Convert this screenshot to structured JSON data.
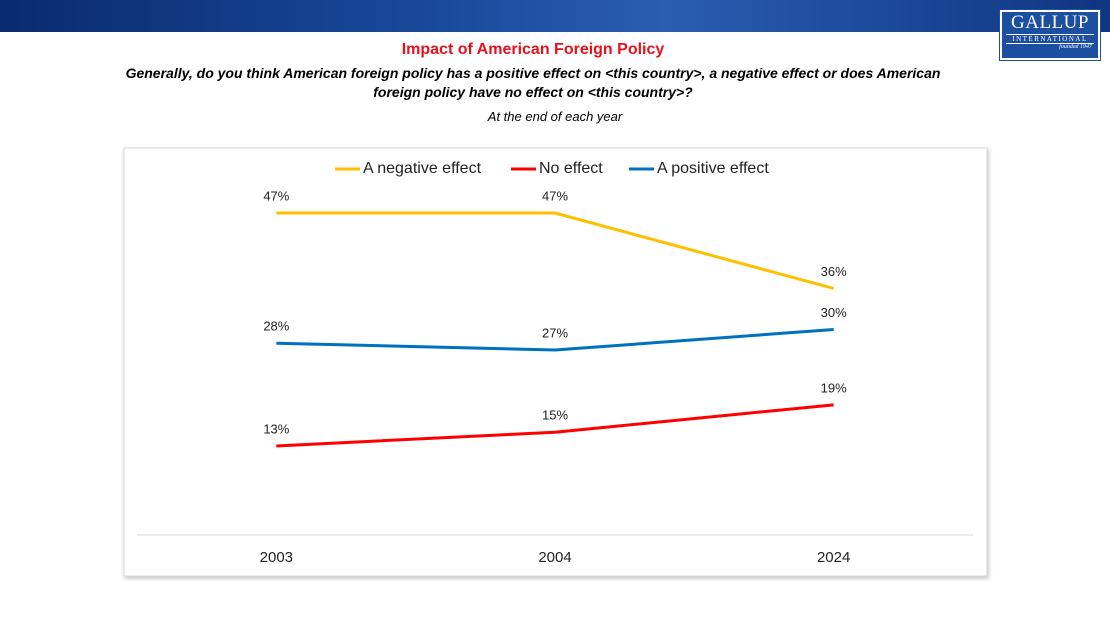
{
  "header": {
    "logo": "GALLUP",
    "logo_sub": "INTERNATIONAL",
    "logo_founded": "founded 1947"
  },
  "chart_data": {
    "type": "line",
    "title": "Impact of American Foreign Policy",
    "subtitle": "Generally, do you think American foreign policy has a positive effect on <this country>, a negative effect or does American foreign policy have no effect on <this country>?",
    "note": "At the end of each year",
    "categories": [
      "2003",
      "2004",
      "2024"
    ],
    "series": [
      {
        "name": "A negative effect",
        "color": "#ffc000",
        "values": [
          47,
          47,
          36
        ],
        "value_labels": [
          "47%",
          "47%",
          "36%"
        ]
      },
      {
        "name": "No effect",
        "color": "#ff0000",
        "values": [
          13,
          15,
          19
        ],
        "value_labels": [
          "13%",
          "15%",
          "19%"
        ]
      },
      {
        "name": "A positive effect",
        "color": "#0070c0",
        "values": [
          28,
          27,
          30
        ],
        "value_labels": [
          "28%",
          "27%",
          "30%"
        ]
      }
    ],
    "ylim": [
      0,
      50
    ],
    "legend": "top",
    "grid": false
  }
}
